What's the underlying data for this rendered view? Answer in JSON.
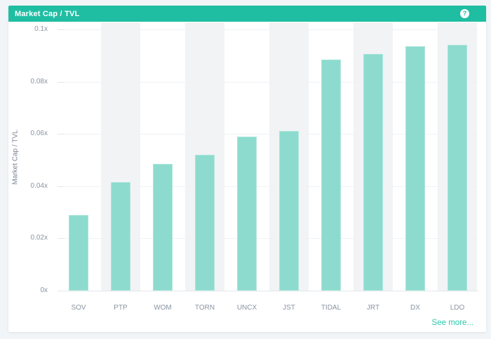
{
  "header": {
    "title": "Market Cap / TVL",
    "help_glyph": "?"
  },
  "footer": {
    "see_more": "See more..."
  },
  "colors": {
    "page_bg": "#f2f5f8",
    "card_bg": "#ffffff",
    "header_bg": "#1fbea3",
    "bar_fill": "#8cdbce",
    "bar_stroke": "#aee6db",
    "stripe": "#f1f3f5",
    "grid": "#f0f2f4",
    "baseline": "#e2e6ea",
    "axis_text": "#8a94a1",
    "axis_title": "#7a8594",
    "link": "#2ec7a9"
  },
  "chart_data": {
    "type": "bar",
    "title": "Market Cap / TVL",
    "categories": [
      "SOV",
      "PTP",
      "WOM",
      "TORN",
      "UNCX",
      "JST",
      "TIDAL",
      "JRT",
      "DX",
      "LDO"
    ],
    "values": [
      0.029,
      0.0415,
      0.0485,
      0.052,
      0.059,
      0.061,
      0.0885,
      0.0905,
      0.0935,
      0.094
    ],
    "xlabel": "",
    "ylabel": "Market Cap / TVL",
    "ylim": [
      0,
      0.1
    ],
    "yticks": [
      0,
      0.02,
      0.04,
      0.06,
      0.08,
      0.1
    ],
    "ytick_labels": [
      "0x",
      "0.02x",
      "0.04x",
      "0.06x",
      "0.08x",
      "0.1x"
    ],
    "grid": true,
    "legend": false,
    "column_banding": "alternate-even-columns-shaded"
  }
}
